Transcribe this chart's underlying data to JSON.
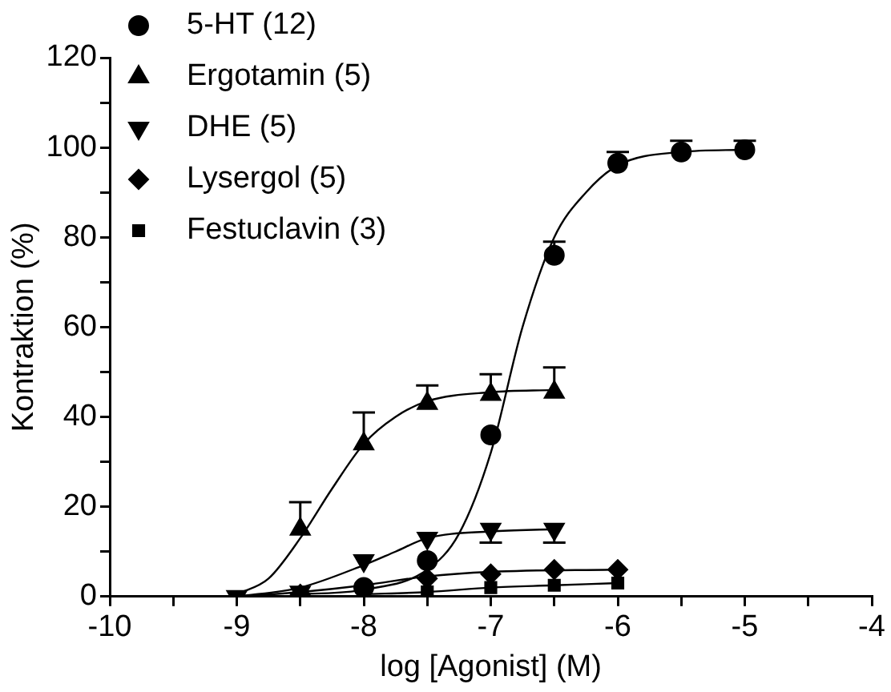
{
  "chart_data": {
    "type": "scatter",
    "xlabel": "log [Agonist] (M)",
    "ylabel": "Kontraktion (%)",
    "xlim": [
      -10,
      -4
    ],
    "xticks": [
      -10,
      {
        "value": -9.5,
        "label": null
      },
      -9,
      {
        "value": -8.5,
        "label": null
      },
      -8,
      {
        "value": -7.5,
        "label": null
      },
      -7,
      {
        "value": -6.5,
        "label": null
      },
      -6,
      {
        "value": -5.5,
        "label": null
      },
      -5,
      {
        "value": -4.5,
        "label": null
      },
      -4
    ],
    "ylim": [
      0,
      120
    ],
    "yticks": [
      0,
      {
        "value": 10,
        "label": null
      },
      20,
      {
        "value": 30,
        "label": null
      },
      40,
      {
        "value": 50,
        "label": null
      },
      60,
      {
        "value": 70,
        "label": null
      },
      80,
      {
        "value": 90,
        "label": null
      },
      100,
      {
        "value": 110,
        "label": null
      },
      120
    ],
    "grid": false,
    "legend": "top left",
    "series": [
      {
        "name": "5-HT (12)",
        "color": "#000000",
        "marker": "circle",
        "x": [
          -8,
          -7.5,
          -7,
          -6.5,
          -6,
          -5.5,
          -5
        ],
        "values": [
          2,
          8,
          36,
          76,
          96.5,
          99,
          99.5
        ],
        "errors": [
          null,
          null,
          null,
          [
            76,
            79
          ],
          [
            96.5,
            99
          ],
          [
            99,
            101.5
          ],
          [
            99.5,
            101.5
          ]
        ]
      },
      {
        "name": "Ergotamin (5)",
        "color": "#000000",
        "marker": "triangle",
        "x": [
          -8.5,
          -8,
          -7.5,
          -7,
          -6.5
        ],
        "values": [
          15,
          34,
          43,
          45,
          45.5
        ],
        "errors": [
          [
            15,
            21
          ],
          [
            34,
            41
          ],
          [
            43,
            47
          ],
          [
            45,
            49.5
          ],
          [
            45.5,
            51
          ]
        ]
      },
      {
        "name": "DHE (5)",
        "color": "#000000",
        "marker": "triangle",
        "x": [
          -9,
          -8.5,
          -8,
          -7.5,
          -7,
          -6.5
        ],
        "values": [
          0,
          1,
          8,
          13,
          15,
          15
        ],
        "errors": [
          null,
          null,
          null,
          null,
          [
            12,
            15
          ],
          [
            12,
            15
          ]
        ]
      },
      {
        "name": "Lysergol (5)",
        "color": "#000000",
        "marker": "diamond",
        "x": [
          -8.5,
          -7.5,
          -7,
          -6.5,
          -6
        ],
        "values": [
          0.5,
          4,
          5,
          6,
          6
        ]
      },
      {
        "name": "Festuclavin (3)",
        "color": "#000000",
        "marker": "square",
        "x": [
          -7.5,
          -7,
          -6.5,
          -6
        ],
        "values": [
          1,
          2,
          2.5,
          3
        ]
      },
      {
        "type": "line",
        "color": "#000000",
        "marker": "none",
        "x": [
          -8.5,
          -8,
          -7.5,
          -7.25,
          -7,
          -6.75,
          -6.5,
          -6.25,
          -6,
          -5.5,
          -5
        ],
        "values": [
          0.5,
          1.5,
          6,
          14,
          32,
          60,
          80,
          90,
          96,
          99,
          99.5
        ]
      },
      {
        "type": "line",
        "color": "#000000",
        "marker": "none",
        "x": [
          -9,
          -8.75,
          -8.5,
          -8.25,
          -8,
          -7.75,
          -7.5,
          -7,
          -6.5
        ],
        "values": [
          0.5,
          4,
          13,
          24,
          34,
          40,
          43.5,
          45.5,
          46
        ]
      },
      {
        "type": "line",
        "color": "#000000",
        "marker": "none",
        "x": [
          -9,
          -8.5,
          -8,
          -7.75,
          -7.5,
          -7,
          -6.5
        ],
        "values": [
          0,
          2,
          7,
          10,
          13,
          14.5,
          15
        ]
      },
      {
        "type": "line",
        "color": "#000000",
        "marker": "none",
        "x": [
          -9,
          -8.5,
          -8,
          -7.5,
          -7,
          -6
        ],
        "values": [
          0,
          1,
          2.5,
          4.5,
          5.5,
          6
        ]
      },
      {
        "type": "line",
        "color": "#000000",
        "marker": "none",
        "x": [
          -8,
          -7.5,
          -7,
          -6.5,
          -6
        ],
        "values": [
          0.5,
          1,
          2,
          2.5,
          3
        ]
      }
    ]
  }
}
